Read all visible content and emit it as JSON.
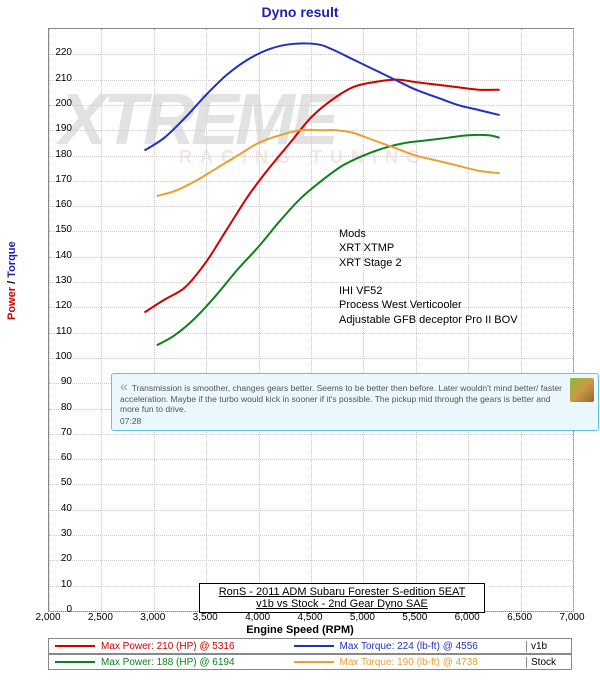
{
  "title": "Dyno result",
  "ylabel_power": "Power",
  "ylabel_torque": "Torque",
  "ylabel_sep": " / ",
  "xlabel": "Engine Speed (RPM)",
  "watermark_main": "XTREME",
  "watermark_sub": "RACING TUNING",
  "chart": {
    "xlim": [
      2000,
      7000
    ],
    "ylim": [
      0,
      230
    ],
    "xtick_step": 500,
    "ytick_step": 10,
    "xticks": [
      "2,000",
      "2,500",
      "3,000",
      "3,500",
      "4,000",
      "4,500",
      "5,000",
      "5,500",
      "6,000",
      "6,500",
      "7,000"
    ],
    "yticks": [
      0,
      10,
      20,
      30,
      40,
      50,
      60,
      70,
      80,
      90,
      100,
      110,
      120,
      130,
      140,
      150,
      160,
      170,
      180,
      190,
      200,
      210,
      220
    ],
    "grid_color": "#cccccc",
    "border_color": "#888888",
    "background": "#ffffff",
    "series": [
      {
        "name": "v1b_power",
        "color": "#d00000",
        "width": 2,
        "points": [
          [
            2911,
            118
          ],
          [
            3100,
            123
          ],
          [
            3300,
            128
          ],
          [
            3500,
            138
          ],
          [
            3700,
            151
          ],
          [
            3900,
            164
          ],
          [
            4100,
            175
          ],
          [
            4300,
            185
          ],
          [
            4500,
            195
          ],
          [
            4700,
            202
          ],
          [
            4900,
            207
          ],
          [
            5100,
            209
          ],
          [
            5316,
            210
          ],
          [
            5500,
            209
          ],
          [
            5700,
            208
          ],
          [
            5900,
            207
          ],
          [
            6100,
            206
          ],
          [
            6300,
            206
          ]
        ]
      },
      {
        "name": "v1b_torque",
        "color": "#2030c0",
        "width": 2,
        "points": [
          [
            2911,
            182
          ],
          [
            3100,
            187
          ],
          [
            3300,
            195
          ],
          [
            3500,
            204
          ],
          [
            3700,
            212
          ],
          [
            3900,
            218
          ],
          [
            4100,
            222
          ],
          [
            4300,
            224
          ],
          [
            4556,
            224
          ],
          [
            4700,
            222
          ],
          [
            4900,
            218
          ],
          [
            5100,
            214
          ],
          [
            5300,
            210
          ],
          [
            5500,
            206
          ],
          [
            5700,
            203
          ],
          [
            5900,
            200
          ],
          [
            6100,
            198
          ],
          [
            6300,
            196
          ]
        ]
      },
      {
        "name": "stock_power",
        "color": "#108020",
        "width": 2,
        "points": [
          [
            3028,
            105
          ],
          [
            3200,
            109
          ],
          [
            3400,
            116
          ],
          [
            3600,
            125
          ],
          [
            3800,
            135
          ],
          [
            4000,
            144
          ],
          [
            4200,
            154
          ],
          [
            4400,
            163
          ],
          [
            4600,
            170
          ],
          [
            4800,
            176
          ],
          [
            5000,
            180
          ],
          [
            5200,
            183
          ],
          [
            5400,
            185
          ],
          [
            5600,
            186
          ],
          [
            5800,
            187
          ],
          [
            6000,
            188
          ],
          [
            6194,
            188
          ],
          [
            6300,
            187
          ]
        ]
      },
      {
        "name": "stock_torque",
        "color": "#e8a030",
        "width": 2,
        "points": [
          [
            3028,
            164
          ],
          [
            3200,
            166
          ],
          [
            3400,
            170
          ],
          [
            3600,
            175
          ],
          [
            3800,
            180
          ],
          [
            4000,
            185
          ],
          [
            4200,
            188
          ],
          [
            4400,
            190
          ],
          [
            4600,
            190
          ],
          [
            4738,
            190
          ],
          [
            4900,
            189
          ],
          [
            5100,
            186
          ],
          [
            5300,
            183
          ],
          [
            5500,
            180
          ],
          [
            5700,
            178
          ],
          [
            5900,
            176
          ],
          [
            6100,
            174
          ],
          [
            6300,
            173
          ]
        ]
      }
    ]
  },
  "mods": {
    "heading": "Mods",
    "lines": [
      "XRT XTMP",
      "XRT Stage 2",
      "",
      "IHI VF52",
      "Process West Verticooler",
      "Adjustable GFB deceptor Pro II BOV"
    ]
  },
  "testimonial": {
    "text": "Transmission is smoother, changes gears better. Seems to be better then before. Later wouldn't mind better/ faster acceleration. Maybe if the turbo would kick in sooner if it's possible. The pickup mid through the gears is better and more fun to drive.",
    "time": "07:28"
  },
  "caption": {
    "line1": "RonS - 2011 ADM Subaru Forester S-edition 5EAT",
    "line2": "v1b vs Stock - 2nd Gear Dyno SAE"
  },
  "legend": {
    "rows": [
      {
        "power": {
          "color": "#d00000",
          "text": "Max Power: 210 (HP) @ 5316"
        },
        "torque": {
          "color": "#2030c0",
          "text": "Max Torque: 224 (lb-ft) @ 4556"
        },
        "label": "v1b"
      },
      {
        "power": {
          "color": "#108020",
          "text": "Max Power: 188 (HP) @ 6194"
        },
        "torque": {
          "color": "#e8a030",
          "text": "Max Torque: 190 (lb-ft) @ 4738"
        },
        "label": "Stock"
      }
    ]
  }
}
